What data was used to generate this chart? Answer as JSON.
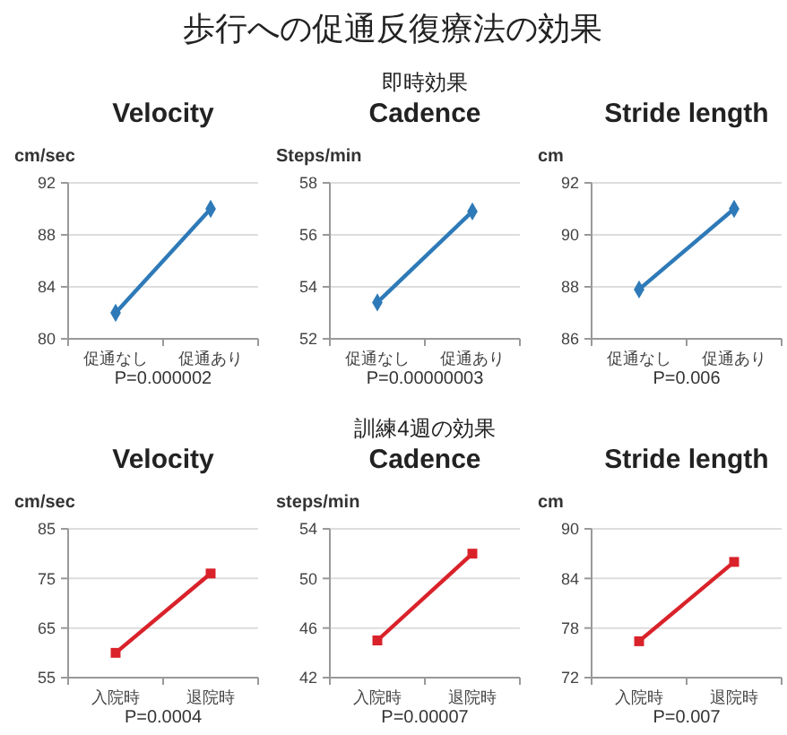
{
  "chart_data": [
    {
      "type": "other",
      "title": "歩行への促通反復療法の効果"
    },
    {
      "type": "line",
      "title": "Velocity",
      "ylabel": "cm/sec",
      "categories": [
        "促通なし",
        "促通あり"
      ],
      "series": [
        {
          "color": "#2e7ab8",
          "values": [
            82,
            90
          ]
        }
      ],
      "ylim": [
        80,
        92
      ],
      "yticks": [
        80,
        84,
        88,
        92
      ],
      "grid": "y",
      "marker": "diamond",
      "annotations": [
        "P=0.000002"
      ]
    },
    {
      "type": "line",
      "title": "Cadence",
      "subtitle": "即時効果",
      "ylabel": "Steps/min",
      "categories": [
        "促通なし",
        "促通あり"
      ],
      "series": [
        {
          "color": "#2e7ab8",
          "values": [
            53.4,
            56.9
          ]
        }
      ],
      "ylim": [
        52,
        58
      ],
      "yticks": [
        52,
        54,
        56,
        58
      ],
      "grid": "y",
      "marker": "diamond",
      "annotations": [
        "P=0.00000003"
      ]
    },
    {
      "type": "line",
      "title": "Stride length",
      "ylabel": "cm",
      "categories": [
        "促通なし",
        "促通あり"
      ],
      "series": [
        {
          "color": "#2e7ab8",
          "values": [
            87.9,
            91
          ]
        }
      ],
      "ylim": [
        86,
        92
      ],
      "yticks": [
        86,
        88,
        90,
        92
      ],
      "grid": "y",
      "marker": "diamond",
      "annotations": [
        "P=0.006"
      ]
    },
    {
      "type": "line",
      "title": "Velocity",
      "ylabel": "cm/sec",
      "categories": [
        "入院時",
        "退院時"
      ],
      "series": [
        {
          "color": "#d9222a",
          "values": [
            60,
            76
          ]
        }
      ],
      "ylim": [
        55,
        85
      ],
      "yticks": [
        55,
        65,
        75,
        85
      ],
      "grid": "y",
      "marker": "square",
      "annotations": [
        "P=0.0004"
      ]
    },
    {
      "type": "line",
      "title": "Cadence",
      "subtitle": "訓練4週の効果",
      "ylabel": "steps/min",
      "categories": [
        "入院時",
        "退院時"
      ],
      "series": [
        {
          "color": "#d9222a",
          "values": [
            45,
            52
          ]
        }
      ],
      "ylim": [
        42,
        54
      ],
      "yticks": [
        42,
        46,
        50,
        54
      ],
      "grid": "y",
      "marker": "square",
      "annotations": [
        "P=0.00007"
      ]
    },
    {
      "type": "line",
      "title": "Stride length",
      "ylabel": "cm",
      "categories": [
        "入院時",
        "退院時"
      ],
      "series": [
        {
          "color": "#d9222a",
          "values": [
            76.4,
            86
          ]
        }
      ],
      "ylim": [
        72,
        90
      ],
      "yticks": [
        72,
        78,
        84,
        90
      ],
      "grid": "y",
      "marker": "square",
      "annotations": [
        "P=0.007"
      ]
    }
  ]
}
